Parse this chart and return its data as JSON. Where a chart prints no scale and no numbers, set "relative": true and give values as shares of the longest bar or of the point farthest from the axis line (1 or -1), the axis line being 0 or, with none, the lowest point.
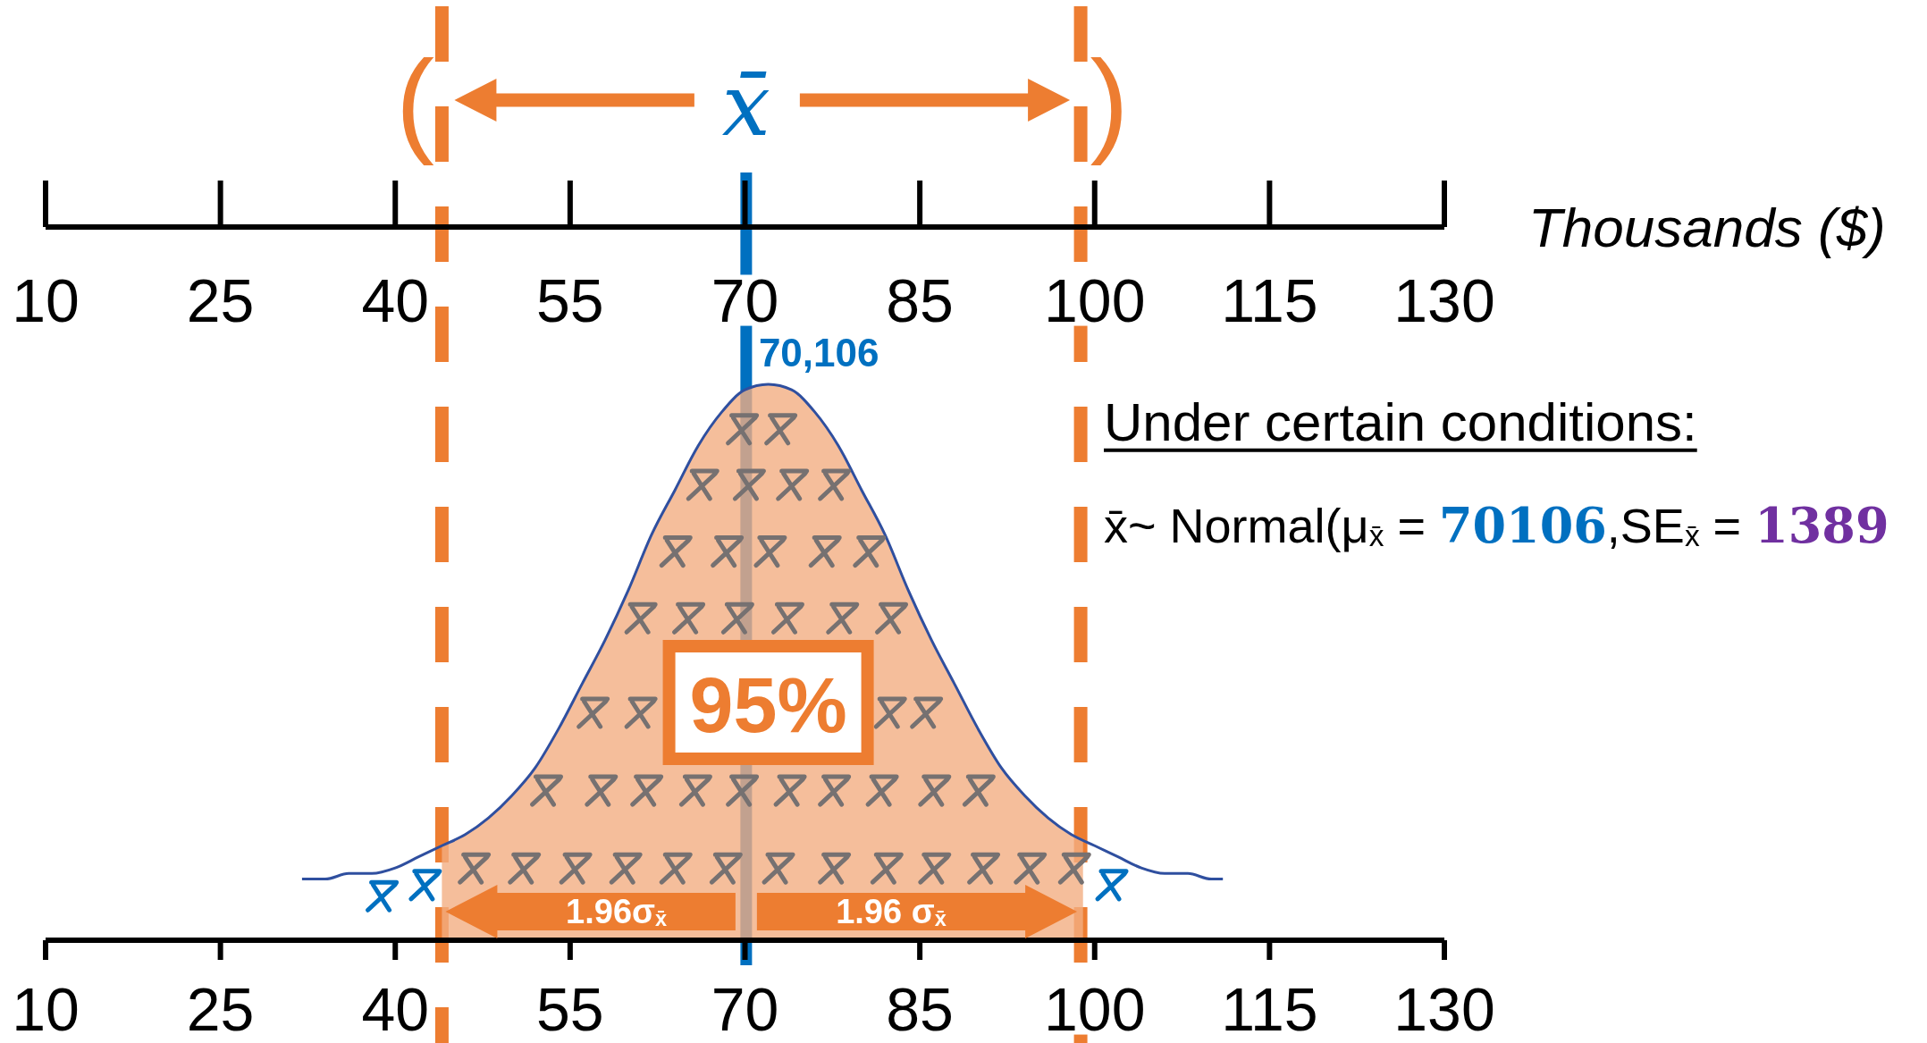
{
  "chart_data": {
    "type": "line",
    "relative": true,
    "xlim": [
      10,
      130
    ],
    "xticks": [
      10,
      25,
      40,
      55,
      70,
      85,
      100,
      115,
      130
    ],
    "x2lim": [
      10,
      130
    ],
    "x2ticks": [
      10,
      25,
      40,
      55,
      70,
      85,
      100,
      115,
      130
    ],
    "x2label": "Thousands ($)",
    "series": [
      {
        "color": "#2f4f9f",
        "x": [
          32,
          34,
          36,
          38,
          40,
          42,
          44,
          46,
          48,
          50,
          52,
          54,
          56,
          58,
          60,
          62,
          64,
          66,
          68,
          70,
          72,
          74,
          76,
          78,
          80,
          82,
          84,
          86,
          88,
          90,
          92,
          94,
          96,
          98,
          100,
          102,
          104,
          106,
          108,
          110,
          111
        ],
        "values": [
          0.11,
          0.11,
          0.12,
          0.12,
          0.13,
          0.15,
          0.17,
          0.19,
          0.22,
          0.26,
          0.31,
          0.38,
          0.46,
          0.54,
          0.63,
          0.73,
          0.81,
          0.89,
          0.95,
          0.99,
          1,
          0.99,
          0.95,
          0.89,
          0.81,
          0.73,
          0.63,
          0.54,
          0.46,
          0.38,
          0.31,
          0.26,
          0.22,
          0.19,
          0.17,
          0.15,
          0.13,
          0.12,
          0.12,
          0.11,
          0.11
        ]
      },
      {
        "type": "area",
        "color": "#f5be9b",
        "x": [
          44,
          46,
          48,
          50,
          52,
          54,
          56,
          58,
          60,
          62,
          64,
          66,
          68,
          70,
          72,
          74,
          76,
          78,
          80,
          82,
          84,
          86,
          88,
          90,
          92,
          94,
          96,
          98,
          99
        ],
        "values": [
          0.17,
          0.19,
          0.22,
          0.26,
          0.31,
          0.38,
          0.46,
          0.54,
          0.63,
          0.73,
          0.81,
          0.89,
          0.95,
          0.99,
          1,
          0.99,
          0.95,
          0.89,
          0.81,
          0.73,
          0.63,
          0.54,
          0.46,
          0.38,
          0.31,
          0.26,
          0.22,
          0.19,
          0.18
        ]
      },
      {
        "type": "scatter",
        "marker": "cross",
        "color": "#767171",
        "x": [
          69.7,
          73.0,
          66.3,
          70.3,
          74.0,
          77.6,
          64.0,
          68.4,
          72.1,
          76.8,
          80.6,
          61.0,
          65.1,
          69.3,
          73.6,
          78.3,
          82.5,
          56.9,
          61.0,
          82.4,
          85.5,
          52.9,
          57.6,
          61.5,
          65.7,
          69.7,
          73.8,
          77.6,
          81.7,
          86.2,
          90.0,
          46.7,
          51.0,
          55.4,
          59.7,
          64.0,
          68.3,
          72.8,
          77.6,
          82.1,
          86.2,
          90.4,
          94.4,
          98.2
        ],
        "values": [
          0.92,
          0.92,
          0.82,
          0.82,
          0.82,
          0.82,
          0.7,
          0.7,
          0.7,
          0.7,
          0.7,
          0.58,
          0.58,
          0.58,
          0.58,
          0.58,
          0.58,
          0.41,
          0.41,
          0.41,
          0.41,
          0.27,
          0.27,
          0.27,
          0.27,
          0.27,
          0.27,
          0.27,
          0.27,
          0.27,
          0.27,
          0.13,
          0.13,
          0.13,
          0.13,
          0.13,
          0.13,
          0.13,
          0.13,
          0.13,
          0.13,
          0.13,
          0.13,
          0.13
        ]
      },
      {
        "type": "scatter",
        "marker": "cross",
        "color": "#0070c0",
        "x": [
          38.8,
          42.5,
          101.4
        ],
        "values": [
          0.08,
          0.1,
          0.1
        ]
      }
    ],
    "ref_lines": [
      {
        "axis": "x",
        "value": 70.106,
        "label": "70,106",
        "color": "#0070c0",
        "line_style": "solid"
      },
      {
        "axis": "x",
        "value": 44.0,
        "color": "#ed7d31",
        "line_style": "dashed"
      },
      {
        "axis": "x",
        "value": 98.8,
        "color": "#ed7d31",
        "line_style": "dashed"
      }
    ],
    "annotations": [
      "(",
      "x̄",
      ")",
      "95%",
      "Under certain conditions:",
      "x̄~ Normal(μ$_{x̄}$ = 70106,SE$_{x̄}$ = 1389",
      "1.96σ$_{x̄}$",
      "1.96 σ$_{x̄}$"
    ]
  }
}
